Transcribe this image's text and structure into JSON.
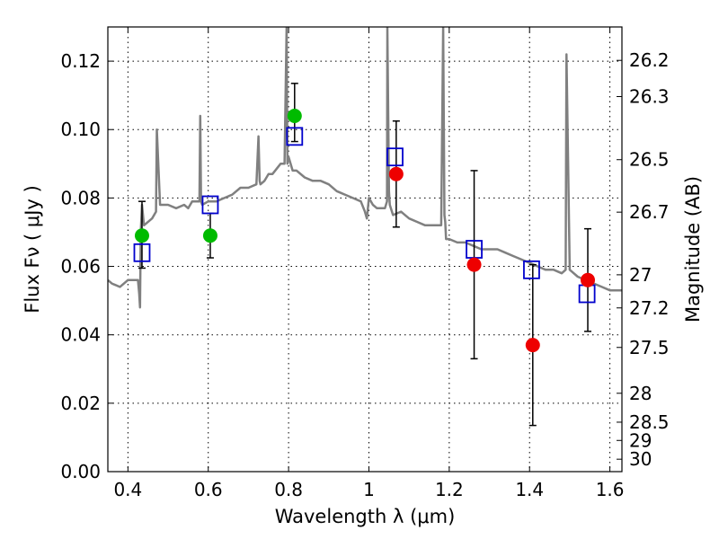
{
  "chart_data": {
    "type": "scatter",
    "title": "",
    "xlabel": "Wavelength  λ (μm)",
    "ylabel": "Flux  Fν  ( μJy )",
    "y2label": "Magnitude (AB)",
    "xlim": [
      0.35,
      1.63
    ],
    "ylim": [
      0.0,
      0.13
    ],
    "grid": true,
    "x_ticks": [
      0.4,
      0.6,
      0.8,
      1.0,
      1.2,
      1.4,
      1.6
    ],
    "x_tick_labels": [
      "0.4",
      "0.6",
      "0.8",
      "1",
      "1.2",
      "1.4",
      "1.6"
    ],
    "y_ticks": [
      0.0,
      0.02,
      0.04,
      0.06,
      0.08,
      0.1,
      0.12
    ],
    "y_tick_labels": [
      "0.00",
      "0.02",
      "0.04",
      "0.06",
      "0.08",
      "0.10",
      "0.12"
    ],
    "mag_ticks": [
      "26.2",
      "26.3",
      "26.5",
      "26.7",
      "27",
      "27.2",
      "27.5",
      "28",
      "28.5",
      "29",
      "30"
    ],
    "colors": {
      "model": "#808080",
      "green": "#00bb00",
      "red": "#ee0000",
      "box": "#0000cc",
      "errorbar": "#000000"
    },
    "series": [
      {
        "name": "model spectrum",
        "style": "line",
        "x": [
          0.35,
          0.36,
          0.38,
          0.4,
          0.42,
          0.425,
          0.428,
          0.43,
          0.432,
          0.435,
          0.44,
          0.46,
          0.47,
          0.472,
          0.48,
          0.5,
          0.52,
          0.54,
          0.55,
          0.56,
          0.57,
          0.578,
          0.58,
          0.582,
          0.585,
          0.6,
          0.62,
          0.64,
          0.66,
          0.68,
          0.7,
          0.72,
          0.725,
          0.728,
          0.73,
          0.74,
          0.75,
          0.76,
          0.78,
          0.79,
          0.795,
          0.797,
          0.8,
          0.81,
          0.82,
          0.84,
          0.86,
          0.88,
          0.9,
          0.92,
          0.94,
          0.96,
          0.98,
          0.99,
          0.995,
          1.0,
          1.01,
          1.02,
          1.03,
          1.04,
          1.045,
          1.046,
          1.05,
          1.052,
          1.06,
          1.08,
          1.09,
          1.1,
          1.12,
          1.14,
          1.16,
          1.18,
          1.185,
          1.188,
          1.19,
          1.192,
          1.2,
          1.22,
          1.24,
          1.26,
          1.28,
          1.3,
          1.32,
          1.34,
          1.36,
          1.38,
          1.4,
          1.42,
          1.44,
          1.46,
          1.48,
          1.49,
          1.492,
          1.5,
          1.52,
          1.54,
          1.56,
          1.58,
          1.6,
          1.63
        ],
        "y": [
          0.056,
          0.055,
          0.054,
          0.056,
          0.056,
          0.056,
          0.052,
          0.048,
          0.07,
          0.078,
          0.072,
          0.074,
          0.076,
          0.1,
          0.078,
          0.078,
          0.077,
          0.078,
          0.077,
          0.079,
          0.079,
          0.079,
          0.104,
          0.079,
          0.078,
          0.079,
          0.079,
          0.08,
          0.081,
          0.083,
          0.083,
          0.084,
          0.098,
          0.085,
          0.084,
          0.085,
          0.087,
          0.087,
          0.09,
          0.09,
          0.13,
          0.09,
          0.092,
          0.088,
          0.088,
          0.086,
          0.085,
          0.085,
          0.084,
          0.082,
          0.081,
          0.08,
          0.079,
          0.076,
          0.074,
          0.08,
          0.078,
          0.077,
          0.077,
          0.077,
          0.079,
          0.13,
          0.082,
          0.078,
          0.075,
          0.076,
          0.075,
          0.074,
          0.073,
          0.072,
          0.072,
          0.072,
          0.13,
          0.075,
          0.073,
          0.068,
          0.068,
          0.067,
          0.067,
          0.066,
          0.065,
          0.065,
          0.065,
          0.064,
          0.063,
          0.062,
          0.061,
          0.06,
          0.059,
          0.059,
          0.058,
          0.059,
          0.122,
          0.059,
          0.057,
          0.056,
          0.055,
          0.054,
          0.053,
          0.053
        ]
      },
      {
        "name": "green points",
        "style": "points",
        "x": [
          0.435,
          0.605,
          0.815
        ],
        "y": [
          0.069,
          0.069,
          0.104
        ],
        "err_low": [
          0.0595,
          0.0625,
          0.0965
        ],
        "err_high": [
          0.079,
          0.0755,
          0.1135
        ]
      },
      {
        "name": "red points",
        "style": "points",
        "x": [
          1.068,
          1.262,
          1.408,
          1.545
        ],
        "y": [
          0.087,
          0.0605,
          0.037,
          0.056
        ],
        "err_low": [
          0.0715,
          0.033,
          0.0135,
          0.041
        ],
        "err_high": [
          0.1025,
          0.088,
          0.0605,
          0.071
        ]
      },
      {
        "name": "model photometry boxes",
        "style": "squares",
        "x": [
          0.435,
          0.605,
          0.815,
          1.065,
          1.262,
          1.405,
          1.543
        ],
        "y": [
          0.064,
          0.078,
          0.098,
          0.092,
          0.065,
          0.059,
          0.052
        ]
      }
    ]
  }
}
